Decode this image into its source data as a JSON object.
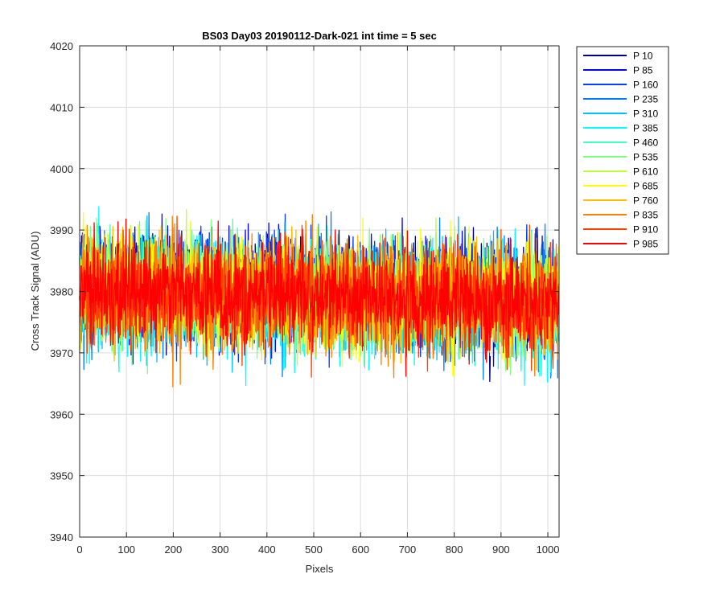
{
  "chart_data": {
    "type": "line",
    "title": "BS03 Day03 20190112-Dark-021 int time = 5 sec",
    "xlabel": "Pixels",
    "ylabel": "Cross Track Signal (ADU)",
    "xlim": [
      0,
      1024
    ],
    "ylim": [
      3940,
      4020
    ],
    "xticks": [
      0,
      100,
      200,
      300,
      400,
      500,
      600,
      700,
      800,
      900,
      1000
    ],
    "yticks": [
      3940,
      3950,
      3960,
      3970,
      3980,
      3990,
      4000,
      4010,
      4020
    ],
    "grid": true,
    "legend_position": "outside-top-right",
    "series": [
      {
        "name": "P 10",
        "color": "#00008f",
        "mean": 3981,
        "spread": 6.0,
        "noisy": true
      },
      {
        "name": "P 85",
        "color": "#0000ff",
        "mean": 3981,
        "spread": 6.0,
        "noisy": true
      },
      {
        "name": "P 160",
        "color": "#0040ff",
        "mean": 3981,
        "spread": 6.0,
        "noisy": true
      },
      {
        "name": "P 235",
        "color": "#0080ff",
        "mean": 3980,
        "spread": 6.0,
        "noisy": true
      },
      {
        "name": "P 310",
        "color": "#00bfff",
        "mean": 3980,
        "spread": 6.2,
        "noisy": true
      },
      {
        "name": "P 385",
        "color": "#00ffff",
        "mean": 3979,
        "spread": 6.5,
        "noisy": true
      },
      {
        "name": "P 460",
        "color": "#40ffbf",
        "mean": 3980,
        "spread": 6.0,
        "noisy": true
      },
      {
        "name": "P 535",
        "color": "#80ff80",
        "mean": 3980,
        "spread": 6.0,
        "noisy": true
      },
      {
        "name": "P 610",
        "color": "#bfff40",
        "mean": 3980,
        "spread": 6.0,
        "noisy": true
      },
      {
        "name": "P 685",
        "color": "#ffff00",
        "mean": 3980,
        "spread": 6.0,
        "noisy": true
      },
      {
        "name": "P 760",
        "color": "#ffbf00",
        "mean": 3980,
        "spread": 6.0,
        "noisy": true
      },
      {
        "name": "P 835",
        "color": "#ff8000",
        "mean": 3980,
        "spread": 6.0,
        "noisy": true
      },
      {
        "name": "P 910",
        "color": "#ff4000",
        "mean": 3980,
        "spread": 5.8,
        "noisy": true
      },
      {
        "name": "P 985",
        "color": "#ff0000",
        "mean": 3980,
        "spread": 5.5,
        "noisy": true
      }
    ],
    "n_points": 1024
  }
}
